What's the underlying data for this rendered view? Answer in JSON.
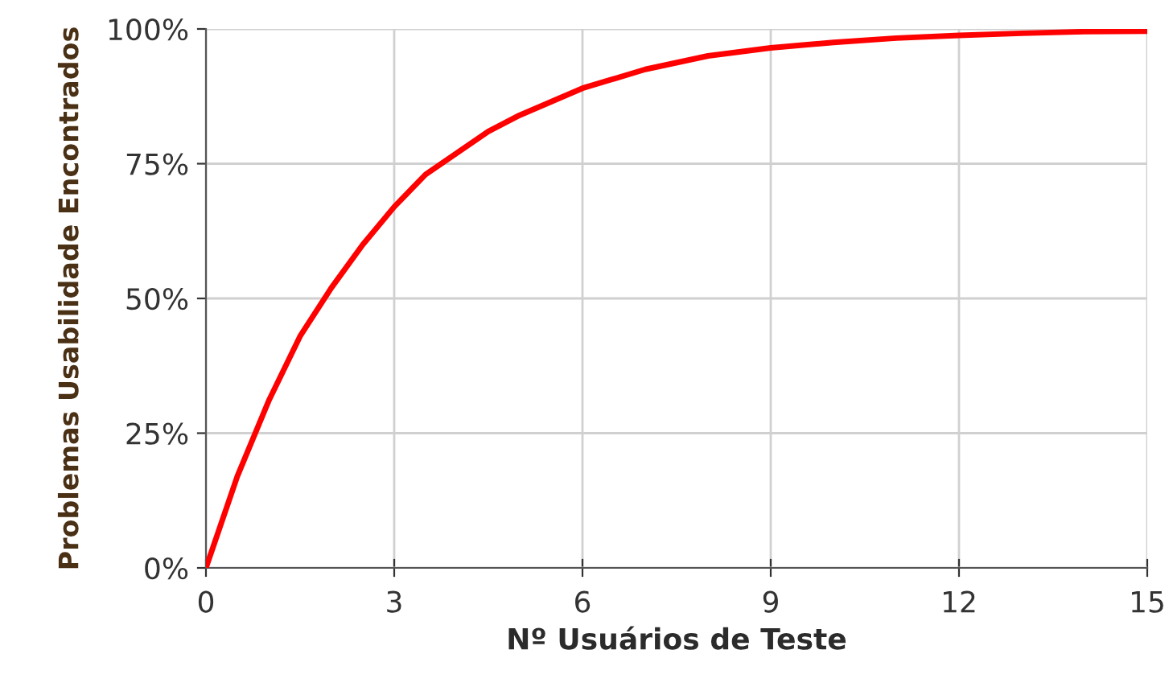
{
  "chart_data": {
    "type": "line",
    "xlabel": "Nº Usuários de Teste",
    "ylabel": "Problemas Usabilidade Encontrados",
    "x": [
      0,
      0.5,
      1,
      1.5,
      2,
      2.5,
      3,
      3.5,
      4,
      4.5,
      5,
      6,
      7,
      8,
      9,
      10,
      11,
      12,
      13,
      14,
      15
    ],
    "series": [
      {
        "color": "#ff0000",
        "values": [
          0,
          17,
          31,
          43,
          52,
          60,
          67,
          73,
          77,
          81,
          84,
          89,
          92.5,
          95,
          96.5,
          97.5,
          98.3,
          98.8,
          99.2,
          99.5,
          99.6
        ]
      }
    ],
    "xlim": [
      0,
      15
    ],
    "xticks": [
      0,
      3,
      6,
      9,
      12,
      15
    ],
    "ylim": [
      0,
      100
    ],
    "yticks": [
      {
        "value": 0,
        "label": "0%"
      },
      {
        "value": 25,
        "label": "25%"
      },
      {
        "value": 50,
        "label": "50%"
      },
      {
        "value": 75,
        "label": "75%"
      },
      {
        "value": 100,
        "label": "100%"
      }
    ],
    "grid": true,
    "marker": "none",
    "line_style": "solid"
  }
}
